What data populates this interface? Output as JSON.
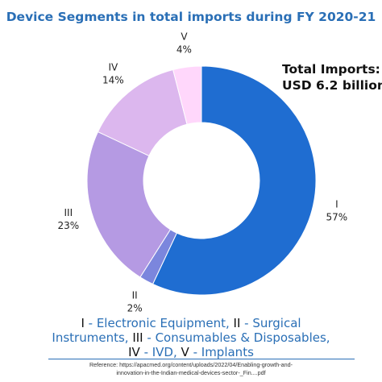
{
  "chart_data": {
    "type": "pie",
    "title": "Device Segments in total imports during FY 2020-21",
    "slices": [
      {
        "label": "I",
        "value": 57,
        "value_label": "57%",
        "color": "#1f6dd1"
      },
      {
        "label": "II",
        "value": 2,
        "value_label": "2%",
        "color": "#7b86dd"
      },
      {
        "label": "III",
        "value": 23,
        "value_label": "23%",
        "color": "#b59ae3"
      },
      {
        "label": "IV",
        "value": 14,
        "value_label": "14%",
        "color": "#dcb7ee"
      },
      {
        "label": "V",
        "value": 4,
        "value_label": "4%",
        "color": "#ffd7fb"
      }
    ],
    "annotation": {
      "line1": "Total Imports:",
      "line2": "USD 6.2 billion"
    }
  },
  "legend": {
    "items": [
      {
        "num": "I",
        "text": "Electronic Equipment"
      },
      {
        "num": "II",
        "text": "Surgical Instruments"
      },
      {
        "num": "III",
        "text": "Consumables & Disposables"
      },
      {
        "num": "IV",
        "text": "IVD"
      },
      {
        "num": "V",
        "text": "Implants"
      }
    ]
  },
  "reference": {
    "line1": "Reference: https://apacmed.org/content/uploads/2022/04/Enabling-growth-and-",
    "line2": "innovation-in-the-Indian-medical-devices-sector-_Fin....pdf"
  }
}
